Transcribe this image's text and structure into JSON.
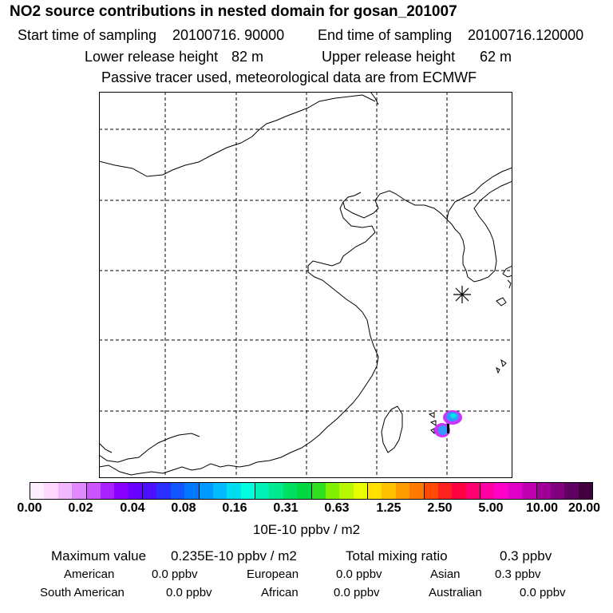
{
  "title": "NO2 source contributions in nested domain for gosan_201007",
  "header": {
    "start_label": "Start time of sampling",
    "start_value": "20100716. 90000",
    "end_label": "End time of sampling",
    "end_value": "20100716.120000",
    "lower_label": "Lower release height",
    "lower_value": "82 m",
    "upper_label": "Upper release height",
    "upper_value": "62 m",
    "note": "Passive tracer used, meteorological data are from ECMWF"
  },
  "map": {
    "receptor_marker": "station-asterisk",
    "plume_colors": [
      "#cc33ff",
      "#3399ff",
      "#00e5e5",
      "#000000"
    ]
  },
  "colorbar": {
    "colors": [
      "#ffeeff",
      "#ffd9ff",
      "#f2b8ff",
      "#e08aff",
      "#cc55ff",
      "#aa22ff",
      "#8800ff",
      "#6a00ff",
      "#4a10ff",
      "#2a30ff",
      "#1155ff",
      "#0077ff",
      "#0099ff",
      "#00bbff",
      "#00ddf0",
      "#00ffe0",
      "#00f0b8",
      "#00e890",
      "#00e060",
      "#00d840",
      "#30e020",
      "#80f000",
      "#b8f800",
      "#e8ff00",
      "#ffe000",
      "#ffc000",
      "#ff9c00",
      "#ff7800",
      "#ff4a00",
      "#ff2020",
      "#ff0040",
      "#ff0070",
      "#ff00a0",
      "#ff00c8",
      "#e000c8",
      "#c000b0",
      "#a00098",
      "#800080",
      "#600060",
      "#400040"
    ],
    "ticks": [
      "0.00",
      "0.02",
      "0.04",
      "0.08",
      "0.16",
      "0.31",
      "0.63",
      "1.25",
      "2.50",
      "5.00",
      "10.00",
      "20.00"
    ],
    "unit": "10E-10 ppbv / m2"
  },
  "stats": {
    "max_label": "Maximum value",
    "max_value": "0.235E-10 ppbv / m2",
    "total_label": "Total mixing ratio",
    "total_value": "0.3 ppbv",
    "regions": [
      {
        "name": "American",
        "value": "0.0 ppbv"
      },
      {
        "name": "European",
        "value": "0.0 ppbv"
      },
      {
        "name": "Asian",
        "value": "0.3 ppbv"
      },
      {
        "name": "South American",
        "value": "0.0 ppbv"
      },
      {
        "name": "African",
        "value": "0.0 ppbv"
      },
      {
        "name": "Australian",
        "value": "0.0 ppbv"
      }
    ]
  }
}
